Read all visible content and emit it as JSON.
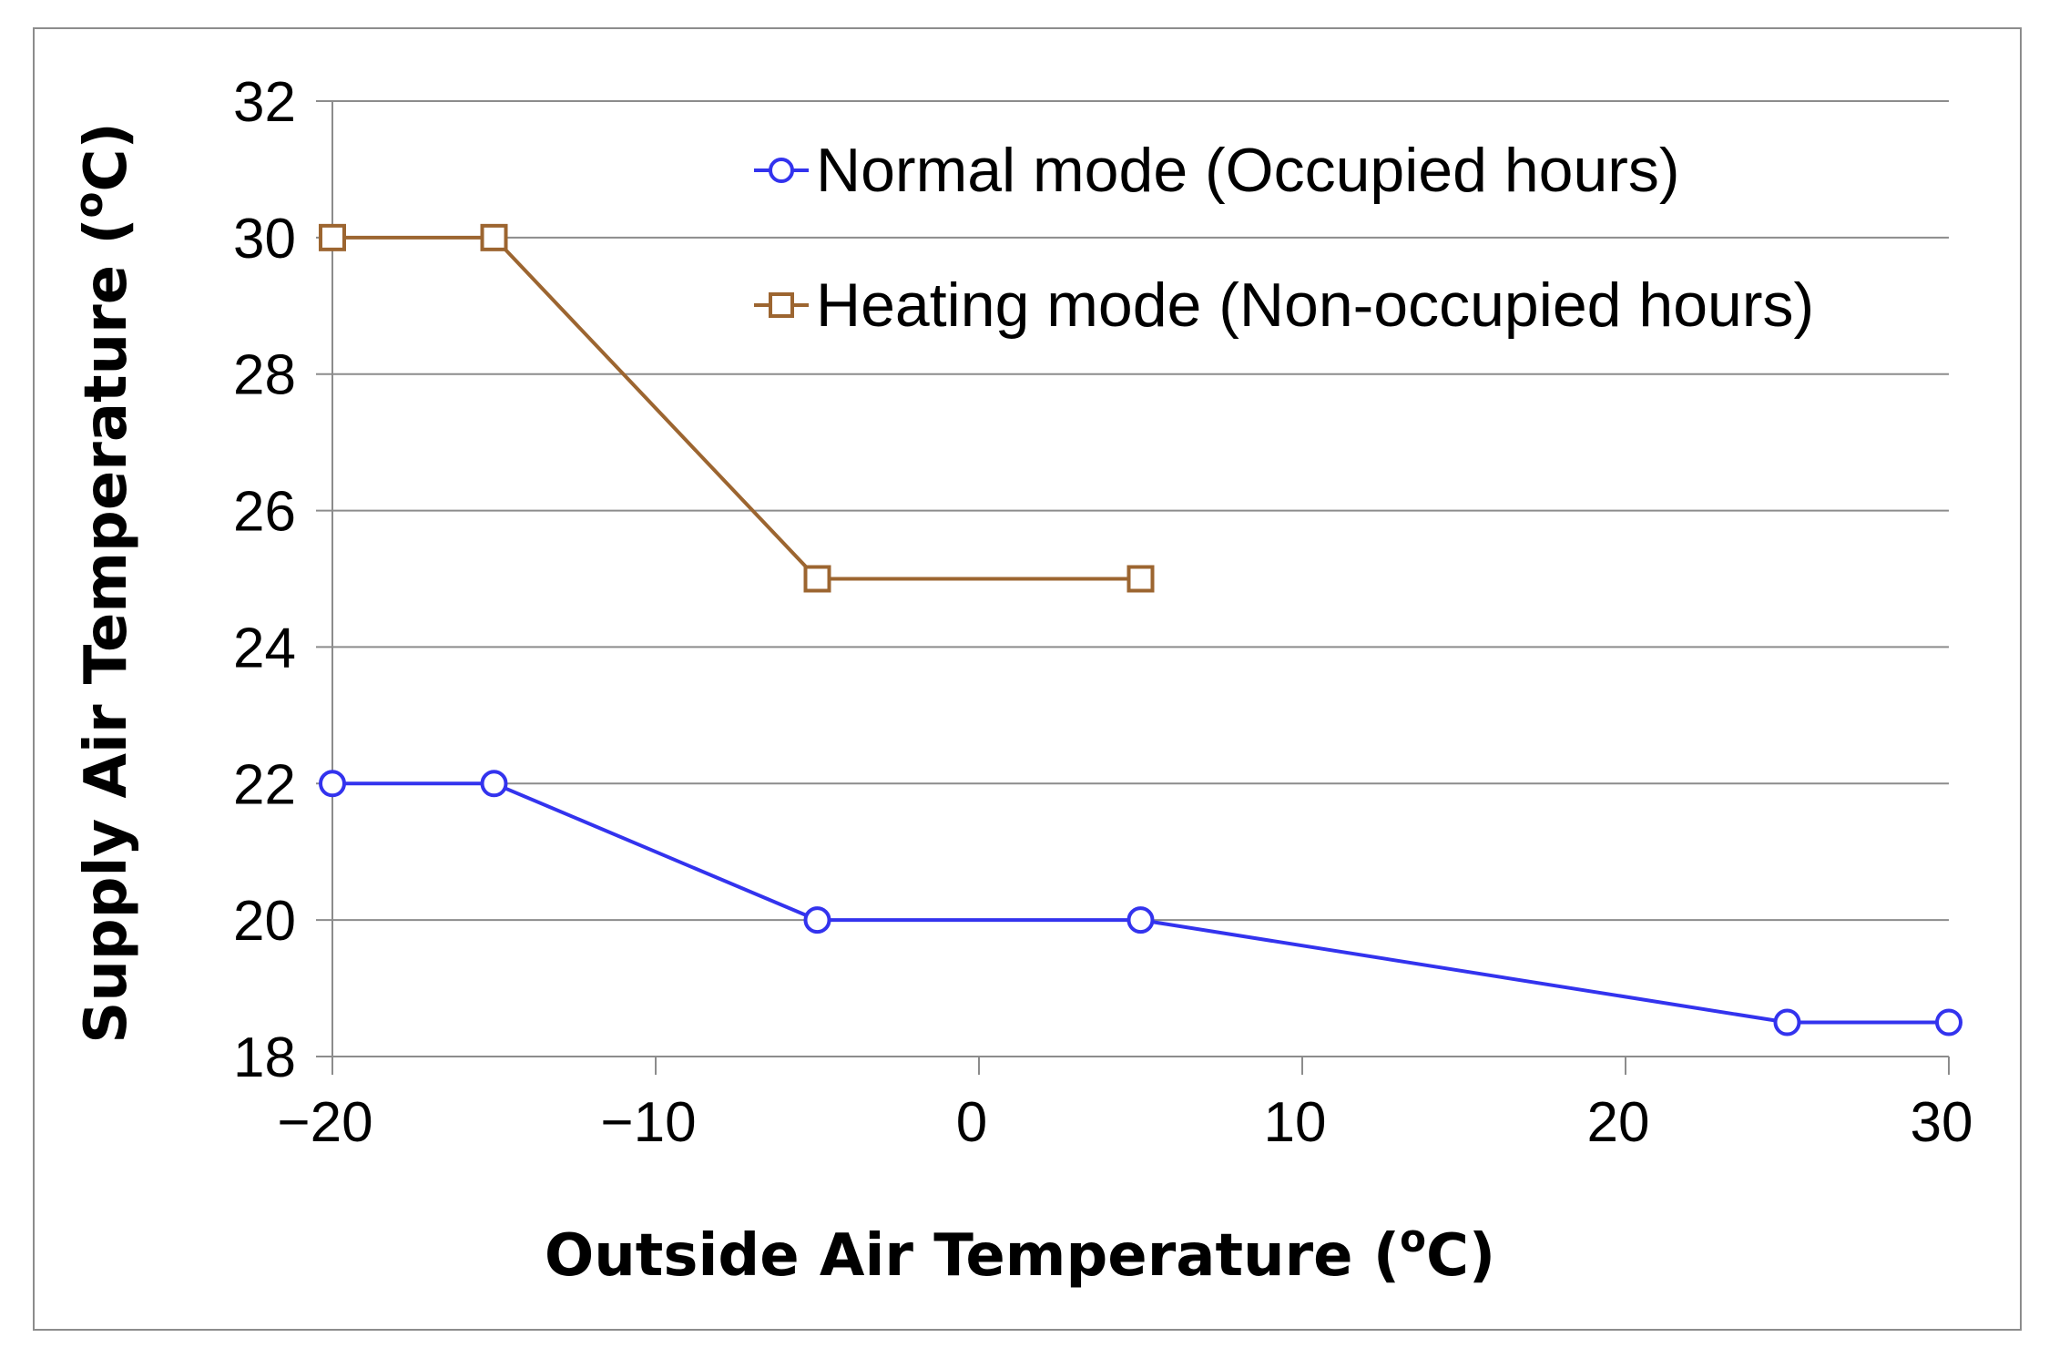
{
  "chart_data": {
    "type": "line",
    "title": "",
    "xlabel": "Outside Air Temperature (",
    "xlabel_sup": "o",
    "xlabel_end": "C)",
    "ylabel": "Supply Air Temperature (",
    "ylabel_sup": "o",
    "ylabel_end": "C)",
    "xlim": [
      -20,
      30
    ],
    "ylim": [
      18,
      32
    ],
    "x_ticks": [
      -20,
      -10,
      0,
      10,
      20,
      30
    ],
    "x_tick_labels": [
      "−20",
      "−10",
      "0",
      "10",
      "20",
      "30"
    ],
    "y_ticks": [
      18,
      20,
      22,
      24,
      26,
      28,
      30,
      32
    ],
    "y_tick_labels": [
      "18",
      "20",
      "22",
      "24",
      "26",
      "28",
      "30",
      "32"
    ],
    "grid": "horizontal",
    "legend_position": "top-right",
    "series": [
      {
        "name": "Normal mode (Occupied hours)",
        "marker": "circle",
        "color": "#3333ee",
        "x": [
          -20,
          -15,
          -5,
          5,
          25,
          30
        ],
        "y": [
          22,
          22,
          20,
          20,
          18.5,
          18.5
        ]
      },
      {
        "name": "Heating mode (Non-occupied hours)",
        "marker": "square",
        "color": "#9c6530",
        "x": [
          -20,
          -15,
          -5,
          5
        ],
        "y": [
          30,
          30,
          25,
          25
        ]
      }
    ]
  }
}
